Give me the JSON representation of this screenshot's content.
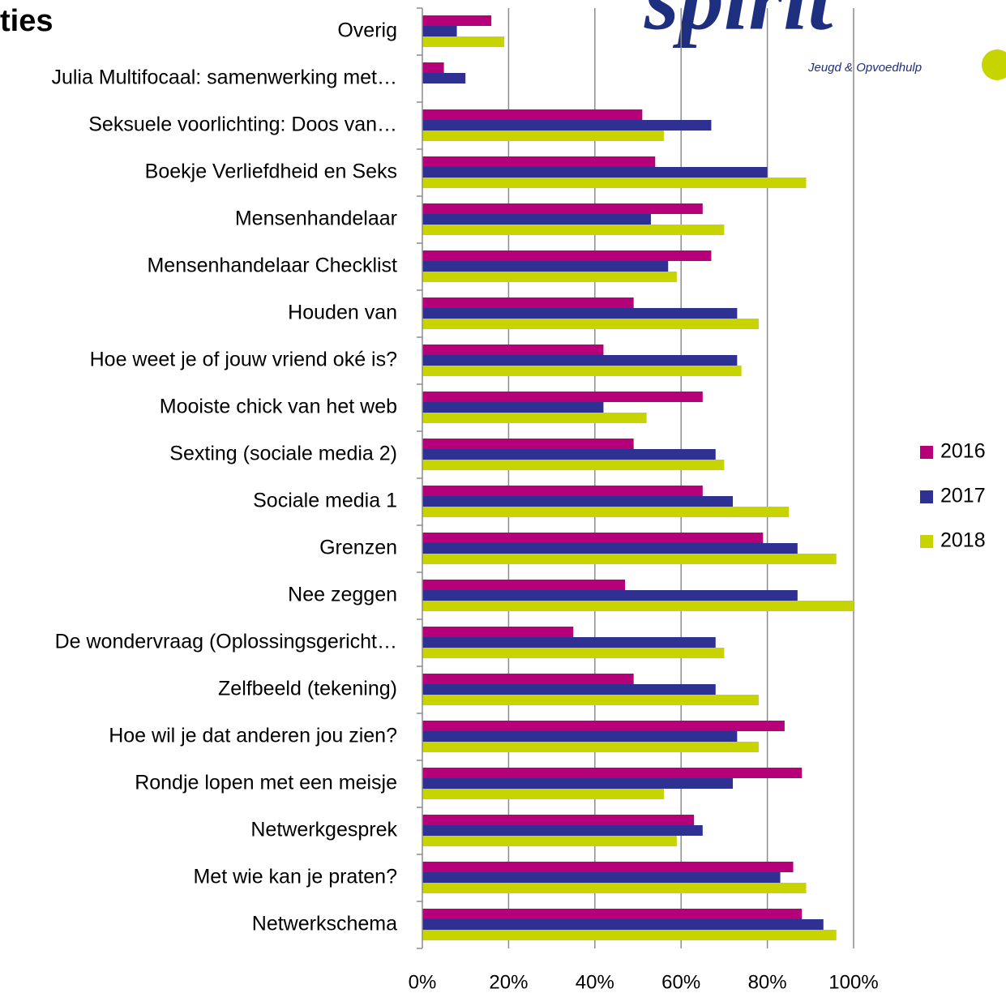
{
  "chart_data": {
    "type": "hbar",
    "title": "ties",
    "logo_text": "spirit",
    "logo_subtitle": "Jeugd & Opvoedhulp",
    "categories": [
      "Overig",
      "Julia Multifocaal: samenwerking met…",
      "Seksuele voorlichting: Doos van…",
      "Boekje Verliefdheid en Seks",
      "Mensenhandelaar",
      "Mensenhandelaar Checklist",
      "Houden van",
      "Hoe weet je of jouw vriend oké is?",
      "Mooiste chick van het web",
      "Sexting (sociale media 2)",
      "Sociale media 1",
      "Grenzen",
      "Nee zeggen",
      "De wondervraag  (Oplossingsgericht…",
      "Zelfbeeld (tekening)",
      "Hoe wil je dat anderen jou zien?",
      "Rondje lopen met een meisje",
      "Netwerkgesprek ",
      "Met wie kan je praten?",
      "Netwerkschema"
    ],
    "series": [
      {
        "name": "2016",
        "color": "#b5007a",
        "values": [
          16,
          5,
          51,
          54,
          65,
          67,
          49,
          42,
          65,
          49,
          65,
          79,
          47,
          35,
          49,
          84,
          88,
          63,
          86,
          88
        ]
      },
      {
        "name": "2017",
        "color": "#2e3192",
        "values": [
          8,
          10,
          67,
          80,
          53,
          57,
          73,
          73,
          42,
          68,
          72,
          87,
          87,
          68,
          68,
          73,
          72,
          65,
          83,
          93
        ]
      },
      {
        "name": "2018",
        "color": "#c8d400",
        "values": [
          19,
          null,
          56,
          89,
          70,
          59,
          78,
          74,
          52,
          70,
          85,
          96,
          100,
          70,
          78,
          78,
          56,
          59,
          89,
          96
        ]
      }
    ],
    "xlim": [
      0,
      100
    ],
    "xticks": [
      {
        "value": 0,
        "label": "0%"
      },
      {
        "value": 20,
        "label": "20%"
      },
      {
        "value": 40,
        "label": "40%"
      },
      {
        "value": 60,
        "label": "60%"
      },
      {
        "value": 80,
        "label": "80%"
      },
      {
        "value": 100,
        "label": "100%"
      }
    ],
    "grid": true,
    "legend": "right"
  }
}
